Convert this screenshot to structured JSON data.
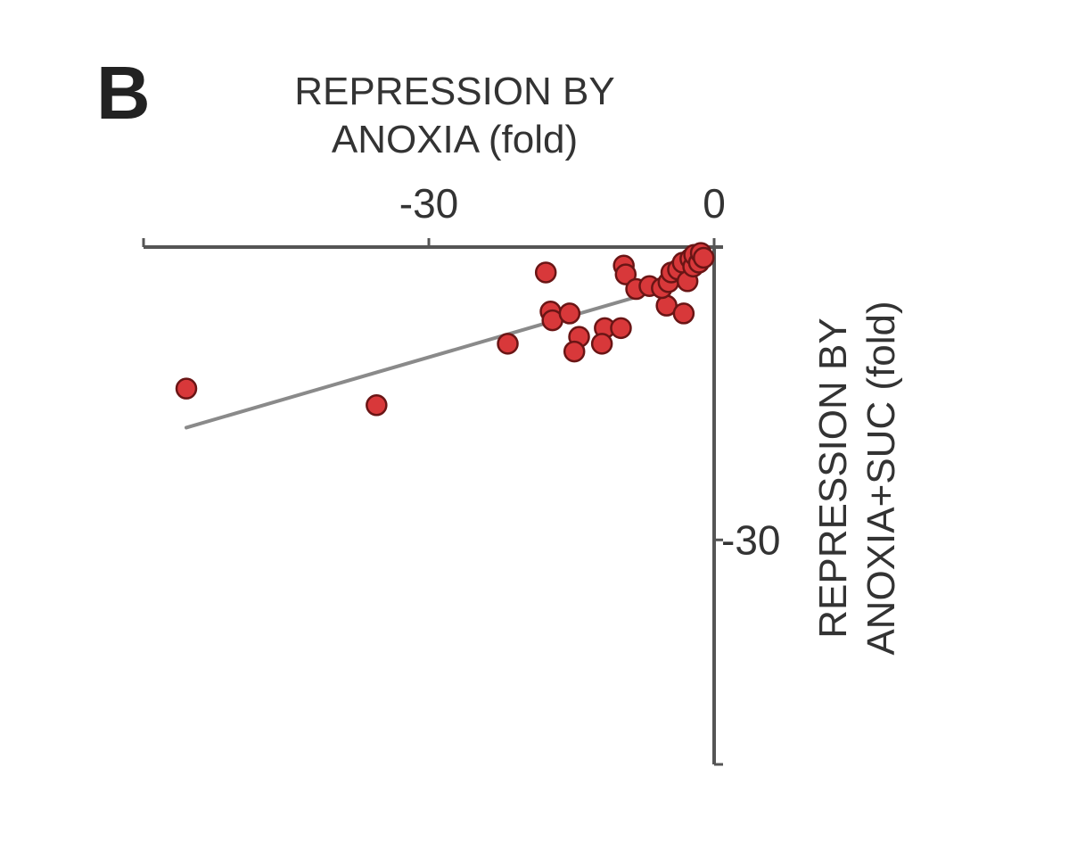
{
  "panel": {
    "letter": "B"
  },
  "chart_data": {
    "type": "scatter",
    "panel_label": "B",
    "xlabel": [
      "REPRESSION BY",
      "ANOXIA (fold)"
    ],
    "ylabel": [
      "REPRESSION BY",
      "ANOXIA+SUC (fold)"
    ],
    "xlim": [
      -60,
      0
    ],
    "ylim": [
      -53,
      0
    ],
    "x_axis_position": "top",
    "y_axis_position": "right",
    "x_tick_labels": [
      {
        "value": -30,
        "label": "-30"
      },
      {
        "value": 0,
        "label": "0"
      }
    ],
    "y_tick_labels": [
      {
        "value": -30,
        "label": "-30"
      }
    ],
    "grid": false,
    "marker_color": "#d8383a",
    "marker_edge_color": "#6a1515",
    "line_color": "#8a8a8a",
    "points": [
      {
        "x": -55.5,
        "y": -14.5
      },
      {
        "x": -35.5,
        "y": -16.2
      },
      {
        "x": -21.7,
        "y": -9.9
      },
      {
        "x": -17.7,
        "y": -2.6
      },
      {
        "x": -17.2,
        "y": -6.6
      },
      {
        "x": -17.0,
        "y": -7.5
      },
      {
        "x": -15.2,
        "y": -6.8
      },
      {
        "x": -14.2,
        "y": -9.2
      },
      {
        "x": -14.7,
        "y": -10.7
      },
      {
        "x": -11.5,
        "y": -8.3
      },
      {
        "x": -11.8,
        "y": -9.9
      },
      {
        "x": -9.8,
        "y": -8.3
      },
      {
        "x": -9.5,
        "y": -1.9
      },
      {
        "x": -9.3,
        "y": -2.8
      },
      {
        "x": -8.2,
        "y": -4.3
      },
      {
        "x": -6.8,
        "y": -4.0
      },
      {
        "x": -5.0,
        "y": -6.0
      },
      {
        "x": -5.5,
        "y": -4.2
      },
      {
        "x": -4.8,
        "y": -3.6
      },
      {
        "x": -4.5,
        "y": -2.6
      },
      {
        "x": -3.8,
        "y": -2.3
      },
      {
        "x": -3.3,
        "y": -1.6
      },
      {
        "x": -3.2,
        "y": -6.8
      },
      {
        "x": -2.8,
        "y": -3.5
      },
      {
        "x": -2.5,
        "y": -1.2
      },
      {
        "x": -2.2,
        "y": -2.0
      },
      {
        "x": -2.1,
        "y": -0.8
      },
      {
        "x": -1.6,
        "y": -1.6
      },
      {
        "x": -1.4,
        "y": -0.6
      },
      {
        "x": -1.1,
        "y": -1.1
      }
    ],
    "fit_line": {
      "x": [
        -55.5,
        -8.5
      ],
      "y": [
        -18.5,
        -5.2
      ]
    }
  }
}
